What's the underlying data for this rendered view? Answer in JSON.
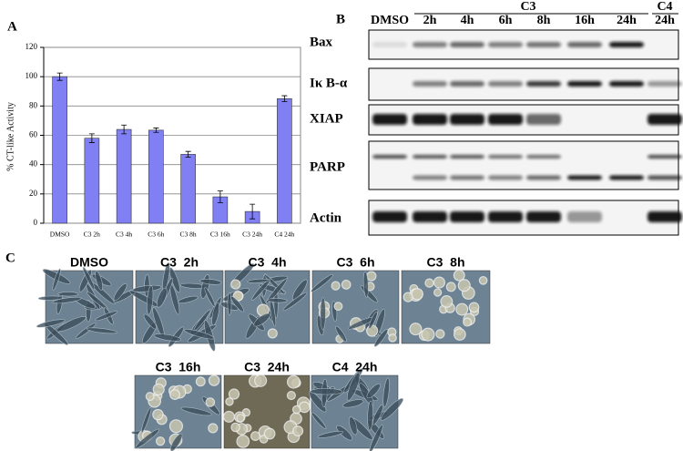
{
  "chart_data": {
    "type": "bar",
    "panel_label": "A",
    "ylabel": "% CT-like Activity",
    "categories": [
      "DMSO",
      "C3 2h",
      "C3 4h",
      "C3 6h",
      "C3 8h",
      "C3 16h",
      "C3 24h",
      "C4 24h"
    ],
    "values": [
      100,
      58,
      64,
      63.5,
      47,
      18,
      8,
      85
    ],
    "errors": [
      2.5,
      3,
      3,
      1.5,
      2,
      4,
      5,
      2
    ],
    "color": "#8080f4",
    "ylim": [
      0,
      120
    ],
    "yticks": [
      0,
      20,
      40,
      60,
      80,
      100,
      120
    ]
  },
  "blot": {
    "panel_label": "B",
    "groups": [
      {
        "label": "C3"
      },
      {
        "label": "C4"
      }
    ],
    "lanes": [
      "DMSO",
      "2h",
      "4h",
      "6h",
      "8h",
      "16h",
      "24h",
      "24h"
    ],
    "rows": [
      "Bax",
      "Iκ B-α",
      "XIAP",
      "PARP",
      "Actin"
    ]
  },
  "micrographs": {
    "panel_label": "C",
    "images": [
      "DMSO",
      "C3  2h",
      "C3  4h",
      "C3  6h",
      "C3  8h",
      "C3  16h",
      "C3  24h",
      "C4  24h"
    ]
  }
}
